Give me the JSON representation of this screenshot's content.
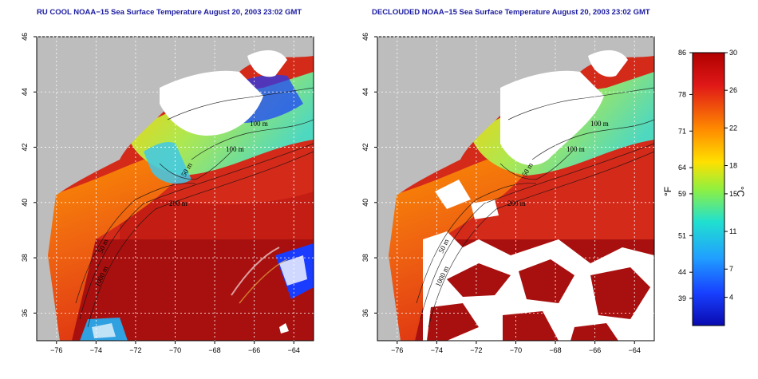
{
  "panels": [
    {
      "id": "raw",
      "title": "RU COOL NOAA−15 Sea Surface Temperature August 20, 2003 23:02 GMT",
      "clouds": "raw"
    },
    {
      "id": "declouded",
      "title": "DECLOUDED NOAA−15 Sea Surface Temperature August 20, 2003 23:02 GMT",
      "clouds": "declouded"
    }
  ],
  "axes": {
    "lon_range": [
      -77,
      -63
    ],
    "lat_range": [
      35,
      46
    ],
    "lon_ticks": [
      "−76",
      "−74",
      "−72",
      "−70",
      "−68",
      "−66",
      "−64"
    ],
    "lat_ticks": [
      "46",
      "44",
      "42",
      "40",
      "38",
      "36"
    ],
    "grid": true
  },
  "contours": {
    "labels": [
      "100 m",
      "100 m",
      "50 m",
      "200 m",
      "50 m",
      "1000 m"
    ]
  },
  "colorbar": {
    "fahrenheit_ticks": [
      "86",
      "78",
      "71",
      "64",
      "59",
      "51",
      "44",
      "39"
    ],
    "celsius_ticks": [
      "30",
      "26",
      "22",
      "18",
      "15",
      "11",
      "7",
      "4"
    ],
    "fahrenheit_unit": "°F",
    "celsius_unit": "°C",
    "range_c": [
      1,
      30
    ]
  },
  "colors": {
    "land": "#bdbdbd",
    "cloud": "#ffffff",
    "warm": "#d42a1a",
    "hot": "#a8100f",
    "mid": "#ffa000",
    "cool": "#2fd0e0",
    "cold": "#1a3cff",
    "title": "#1a1aa0"
  }
}
